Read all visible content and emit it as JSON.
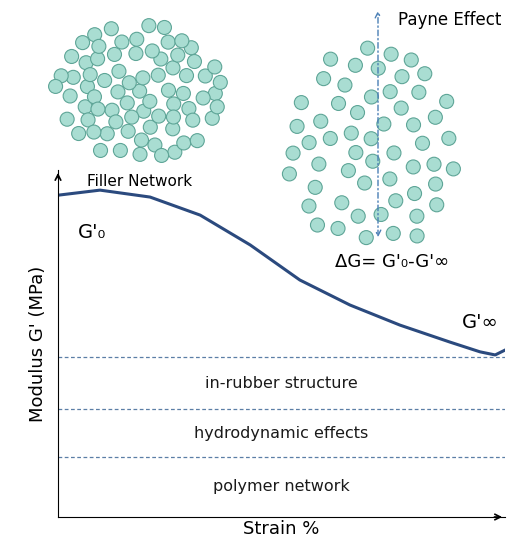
{
  "chart_data": {
    "type": "line",
    "x_label": "Strain %",
    "y_label": "Modulus G' (MPa)",
    "x": [
      0.04,
      0.94,
      2.06,
      3.18,
      4.3,
      5.41,
      6.53,
      7.65,
      8.77,
      9.44,
      9.78,
      10.0
    ],
    "values": [
      9.28,
      9.42,
      9.22,
      8.7,
      7.84,
      6.83,
      6.11,
      5.53,
      5.04,
      4.76,
      4.67,
      4.81
    ],
    "color": "#2b4a7e",
    "xlim": [
      0,
      10
    ],
    "ylim": [
      0,
      10
    ],
    "xticks": [],
    "yticks": [],
    "tick_labels": false,
    "levels": [
      {
        "label": "in-rubber structure",
        "value": 4.61
      },
      {
        "label": "hydrodynamic effects",
        "value": 3.11
      },
      {
        "label": "polymer network",
        "value": 1.73
      }
    ],
    "annotations": {
      "start": "G'₀",
      "end": "G'∞",
      "delta": "ΔG= G'₀-G'∞",
      "filler": "Filler Network",
      "payne": "Payne Effect"
    }
  }
}
